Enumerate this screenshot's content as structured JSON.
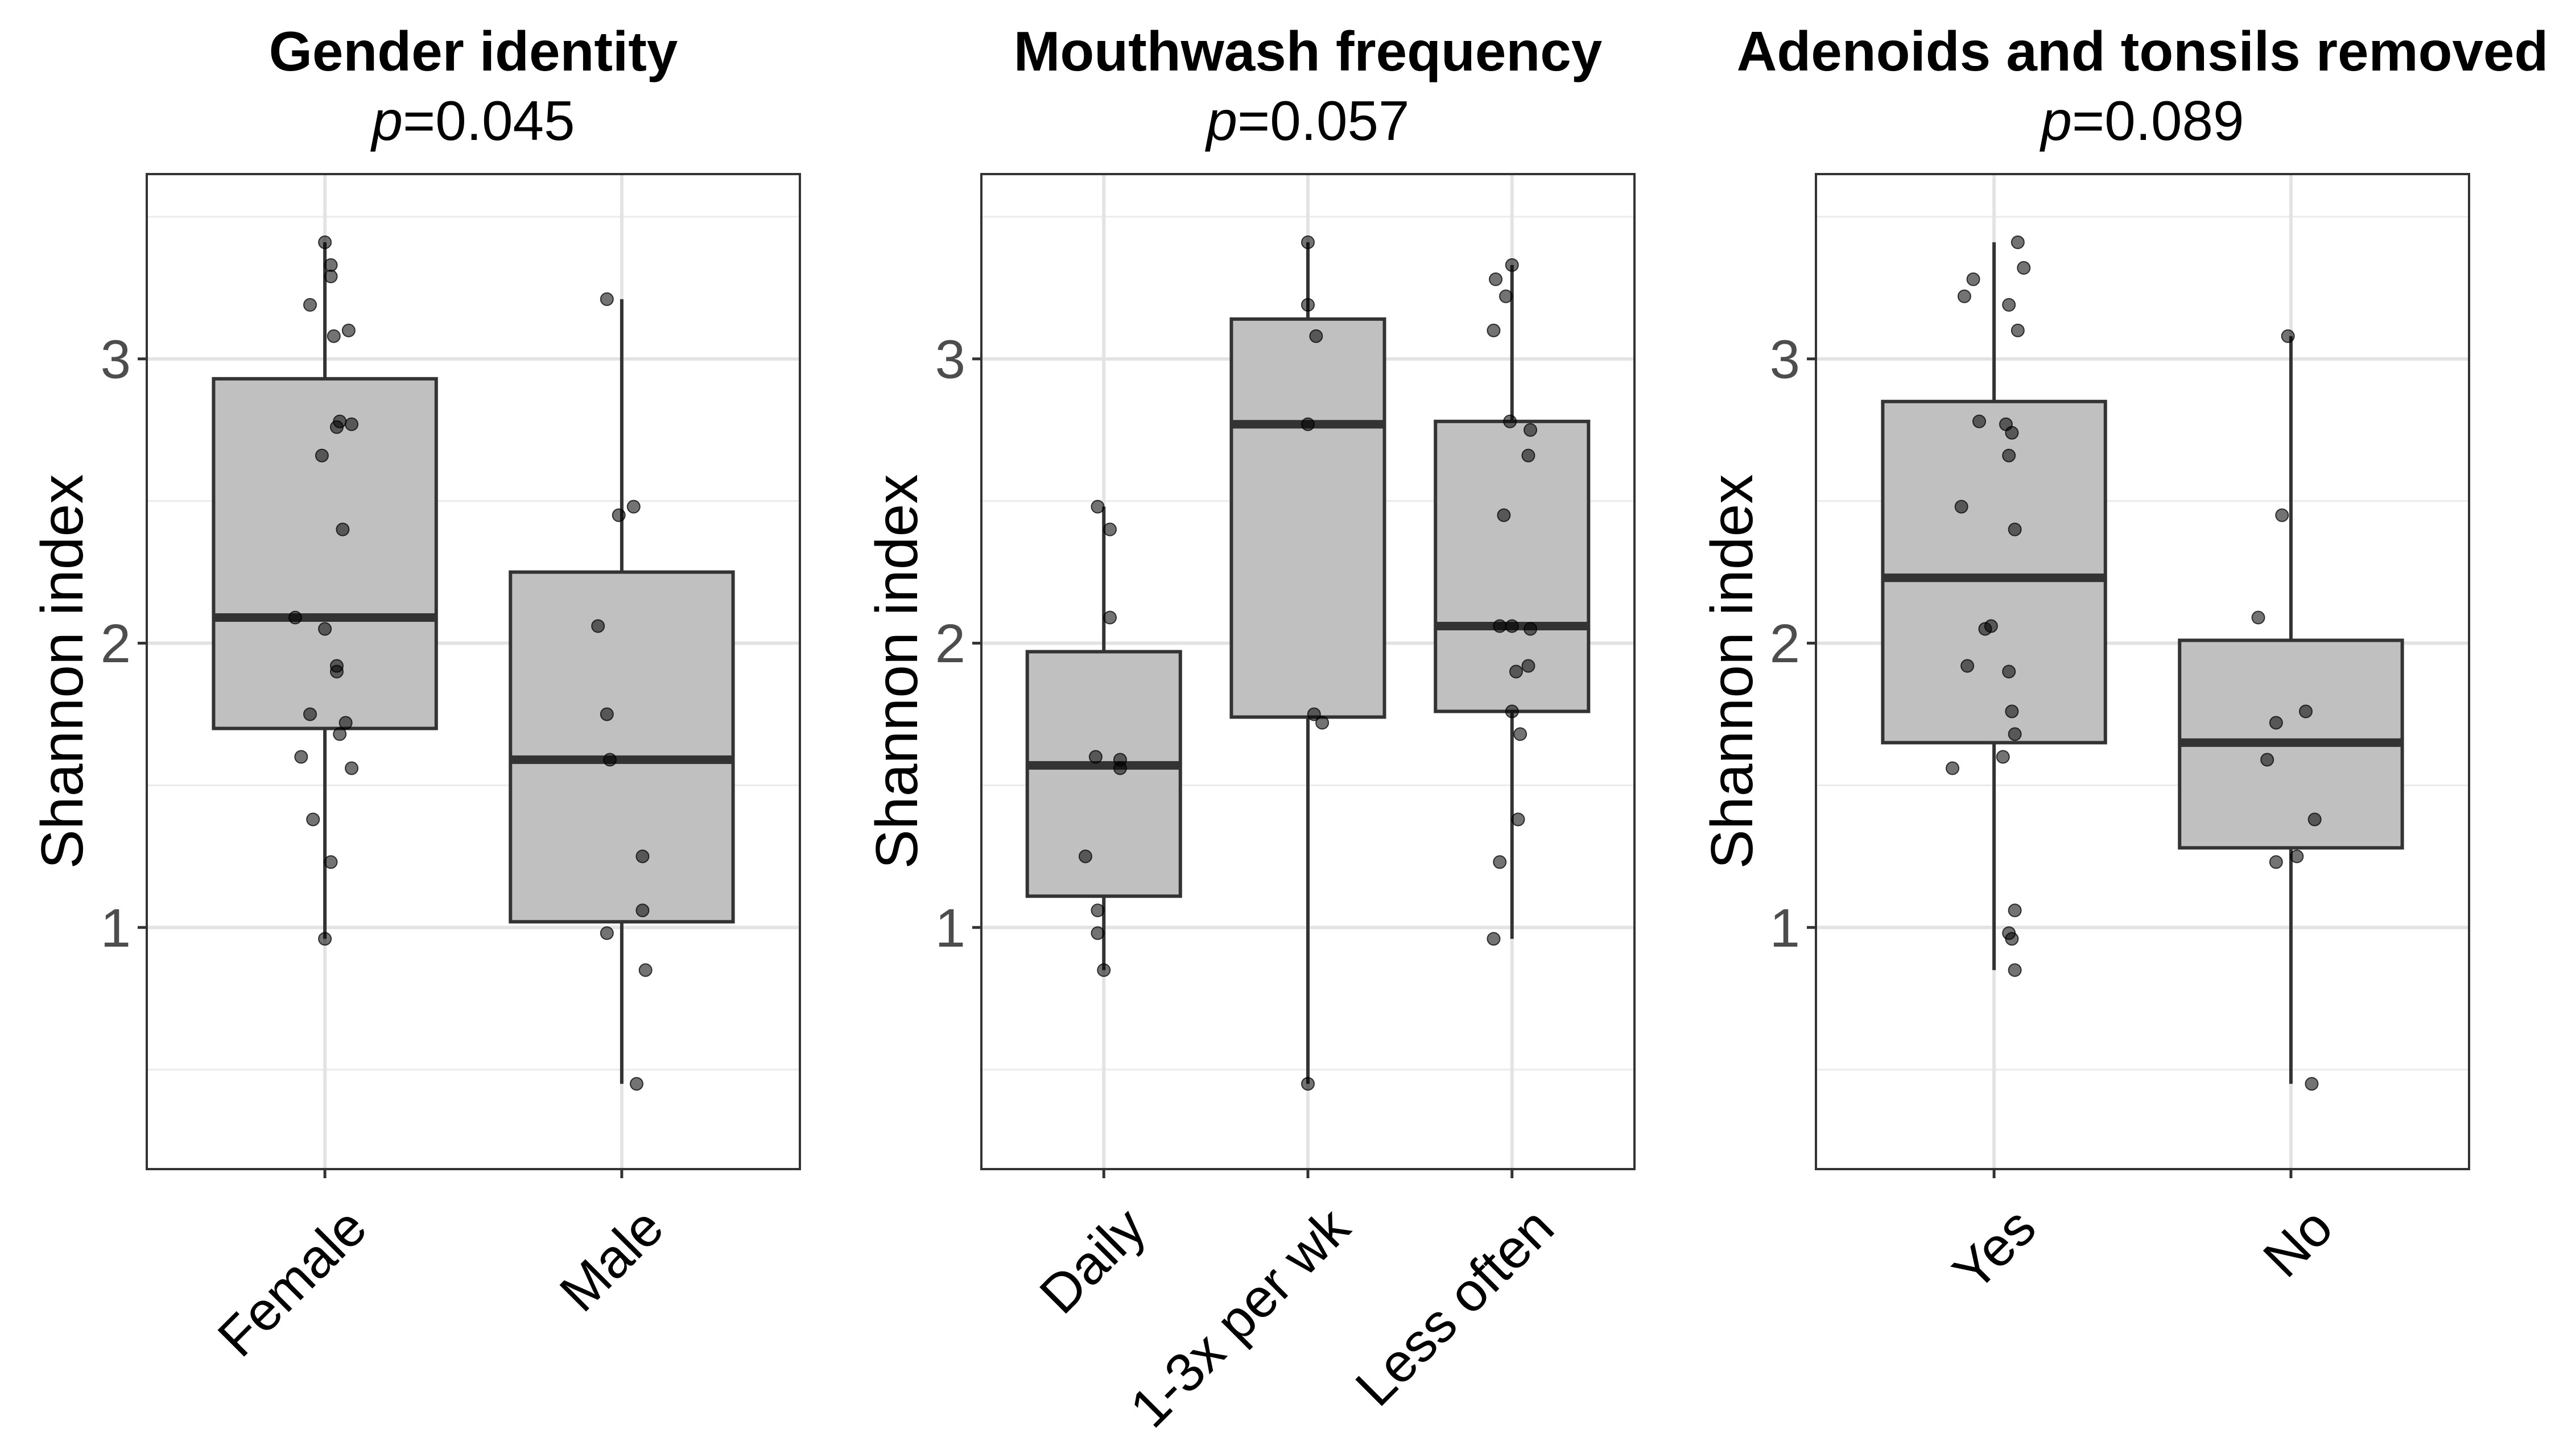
{
  "chart_data": [
    {
      "type": "box",
      "title": "Gender identity",
      "p_prefix": "p",
      "p_value": "=0.045",
      "ylabel": "Shannon index",
      "xlabel": "",
      "ylim": [
        0.15,
        3.65
      ],
      "yticks": [
        1,
        2,
        3
      ],
      "ytick_labels": [
        "1",
        "2",
        "3"
      ],
      "grid": true,
      "categories": [
        "Female",
        "Male"
      ],
      "boxes": [
        {
          "category": "Female",
          "min": 0.96,
          "q1": 1.7,
          "median": 2.09,
          "q3": 2.93,
          "max": 3.41
        },
        {
          "category": "Male",
          "min": 0.45,
          "q1": 1.02,
          "median": 1.59,
          "q3": 2.25,
          "max": 3.21
        }
      ],
      "points": [
        [
          [
            -0.0,
            3.41
          ],
          [
            0.02,
            3.33
          ],
          [
            0.02,
            3.29
          ],
          [
            -0.05,
            3.19
          ],
          [
            0.03,
            3.08
          ],
          [
            0.08,
            3.1
          ],
          [
            0.05,
            2.78
          ],
          [
            0.04,
            2.76
          ],
          [
            0.09,
            2.77
          ],
          [
            -0.01,
            2.66
          ],
          [
            0.06,
            2.4
          ],
          [
            -0.1,
            2.09
          ],
          [
            -0.0,
            2.05
          ],
          [
            0.04,
            1.92
          ],
          [
            0.04,
            1.9
          ],
          [
            -0.05,
            1.75
          ],
          [
            0.07,
            1.72
          ],
          [
            0.05,
            1.68
          ],
          [
            -0.08,
            1.6
          ],
          [
            0.09,
            1.56
          ],
          [
            -0.04,
            1.38
          ],
          [
            0.02,
            1.23
          ],
          [
            0.0,
            0.96
          ]
        ],
        [
          [
            -0.05,
            3.21
          ],
          [
            0.04,
            2.48
          ],
          [
            -0.01,
            2.45
          ],
          [
            -0.08,
            2.06
          ],
          [
            -0.05,
            1.75
          ],
          [
            -0.04,
            1.59
          ],
          [
            0.07,
            1.25
          ],
          [
            0.07,
            1.06
          ],
          [
            -0.05,
            0.98
          ],
          [
            0.08,
            0.85
          ],
          [
            0.05,
            0.45
          ]
        ]
      ]
    },
    {
      "type": "box",
      "title": "Mouthwash frequency",
      "p_prefix": "p",
      "p_value": "=0.057",
      "ylabel": "Shannon index",
      "xlabel": "",
      "ylim": [
        0.15,
        3.65
      ],
      "yticks": [
        1,
        2,
        3
      ],
      "ytick_labels": [
        "1",
        "2",
        "3"
      ],
      "grid": true,
      "categories": [
        "Daily",
        "1-3x per wk",
        "Less often"
      ],
      "boxes": [
        {
          "category": "Daily",
          "min": 0.85,
          "q1": 1.11,
          "median": 1.57,
          "q3": 1.97,
          "max": 2.48
        },
        {
          "category": "1-3x per wk",
          "min": 0.45,
          "q1": 1.74,
          "median": 2.77,
          "q3": 3.14,
          "max": 3.41
        },
        {
          "category": "Less often",
          "min": 0.96,
          "q1": 1.76,
          "median": 2.06,
          "q3": 2.78,
          "max": 3.33
        }
      ],
      "points": [
        [
          [
            -0.03,
            2.48
          ],
          [
            0.03,
            2.4
          ],
          [
            0.03,
            2.09
          ],
          [
            -0.04,
            1.6
          ],
          [
            0.08,
            1.59
          ],
          [
            0.08,
            1.56
          ],
          [
            -0.09,
            1.25
          ],
          [
            -0.03,
            1.06
          ],
          [
            -0.03,
            0.98
          ],
          [
            0.0,
            0.85
          ]
        ],
        [
          [
            0.0,
            3.41
          ],
          [
            0.0,
            3.19
          ],
          [
            0.04,
            3.08
          ],
          [
            0.0,
            2.77
          ],
          [
            0.03,
            1.75
          ],
          [
            0.07,
            1.72
          ],
          [
            0.0,
            0.45
          ]
        ],
        [
          [
            0.0,
            3.33
          ],
          [
            -0.08,
            3.28
          ],
          [
            -0.03,
            3.22
          ],
          [
            -0.09,
            3.1
          ],
          [
            -0.01,
            2.78
          ],
          [
            0.09,
            2.75
          ],
          [
            0.08,
            2.66
          ],
          [
            -0.04,
            2.45
          ],
          [
            -0.06,
            2.06
          ],
          [
            0.0,
            2.06
          ],
          [
            0.09,
            2.05
          ],
          [
            0.08,
            1.92
          ],
          [
            0.02,
            1.9
          ],
          [
            0.0,
            1.76
          ],
          [
            0.04,
            1.68
          ],
          [
            0.03,
            1.38
          ],
          [
            -0.06,
            1.23
          ],
          [
            -0.09,
            0.96
          ]
        ]
      ]
    },
    {
      "type": "box",
      "title": "Adenoids and tonsils removed",
      "p_prefix": "p",
      "p_value": "=0.089",
      "ylabel": "Shannon index",
      "xlabel": "",
      "ylim": [
        0.15,
        3.65
      ],
      "yticks": [
        1,
        2,
        3
      ],
      "ytick_labels": [
        "1",
        "2",
        "3"
      ],
      "grid": true,
      "categories": [
        "Yes",
        "No"
      ],
      "boxes": [
        {
          "category": "Yes",
          "min": 0.85,
          "q1": 1.65,
          "median": 2.23,
          "q3": 2.85,
          "max": 3.41
        },
        {
          "category": "No",
          "min": 0.45,
          "q1": 1.28,
          "median": 1.65,
          "q3": 2.01,
          "max": 3.08
        }
      ],
      "points": [
        [
          [
            0.08,
            3.41
          ],
          [
            0.1,
            3.32
          ],
          [
            -0.07,
            3.28
          ],
          [
            -0.1,
            3.22
          ],
          [
            0.05,
            3.19
          ],
          [
            0.08,
            3.1
          ],
          [
            -0.05,
            2.78
          ],
          [
            0.04,
            2.77
          ],
          [
            0.06,
            2.74
          ],
          [
            0.05,
            2.66
          ],
          [
            -0.11,
            2.48
          ],
          [
            0.07,
            2.4
          ],
          [
            -0.01,
            2.06
          ],
          [
            -0.03,
            2.05
          ],
          [
            -0.09,
            1.92
          ],
          [
            0.05,
            1.9
          ],
          [
            0.06,
            1.76
          ],
          [
            0.07,
            1.68
          ],
          [
            0.03,
            1.6
          ],
          [
            -0.14,
            1.56
          ],
          [
            0.07,
            1.06
          ],
          [
            0.05,
            0.98
          ],
          [
            0.06,
            0.96
          ],
          [
            0.07,
            0.85
          ]
        ],
        [
          [
            -0.01,
            3.08
          ],
          [
            -0.03,
            2.45
          ],
          [
            -0.11,
            2.09
          ],
          [
            0.05,
            1.76
          ],
          [
            -0.05,
            1.72
          ],
          [
            -0.08,
            1.59
          ],
          [
            0.08,
            1.38
          ],
          [
            0.02,
            1.25
          ],
          [
            -0.05,
            1.23
          ],
          [
            0.07,
            0.45
          ]
        ]
      ]
    }
  ]
}
